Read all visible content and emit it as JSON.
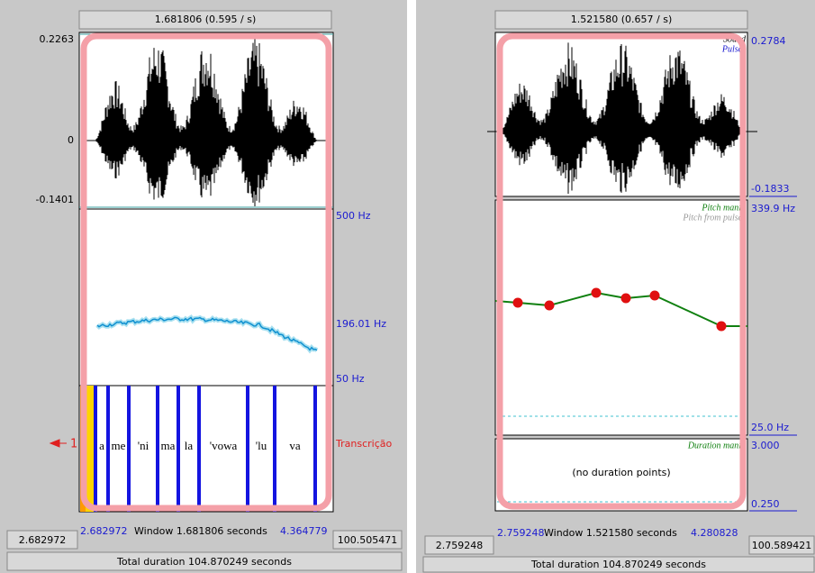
{
  "left_editor": {
    "header": "1.681806 (0.595 / s)",
    "sound_axis": {
      "top": "0.2263",
      "zero": "0",
      "bottom": "-0.1401"
    },
    "pitch_axis": {
      "top": "500 Hz",
      "middle": "196.01 Hz",
      "bottom": "50 Hz"
    },
    "tier": {
      "number": "1",
      "name": "Transcrição",
      "intervals": [
        "a",
        "me",
        "'ni",
        "ma",
        "la",
        "'vowa",
        "'lu",
        "va"
      ]
    },
    "footer": {
      "start": "2.682972",
      "window_start": "2.682972",
      "window_label": "Window 1.681806 seconds",
      "window_end": "4.364779",
      "end": "100.505471"
    },
    "total": "Total duration 104.870249 seconds"
  },
  "right_editor": {
    "header": "1.521580 (0.657 / s)",
    "sound_legend": [
      "Sound",
      "Pulses"
    ],
    "sound_axis": {
      "top": "0.2784",
      "bottom": "-0.1833"
    },
    "pitch_legend": [
      "Pitch manip",
      "Pitch from pulses"
    ],
    "pitch_axis": {
      "top": "339.9 Hz",
      "bottom": "25.0 Hz"
    },
    "duration_legend": "Duration manip",
    "duration_axis": {
      "top": "3.000",
      "bottom": "0.250"
    },
    "duration_note": "(no duration points)",
    "footer": {
      "start": "2.759248",
      "window_start": "2.759248",
      "window_label": "Window 1.521580 seconds",
      "window_end": "4.280828",
      "end": "100.589421"
    },
    "total": "Total duration 104.870249 seconds"
  }
}
